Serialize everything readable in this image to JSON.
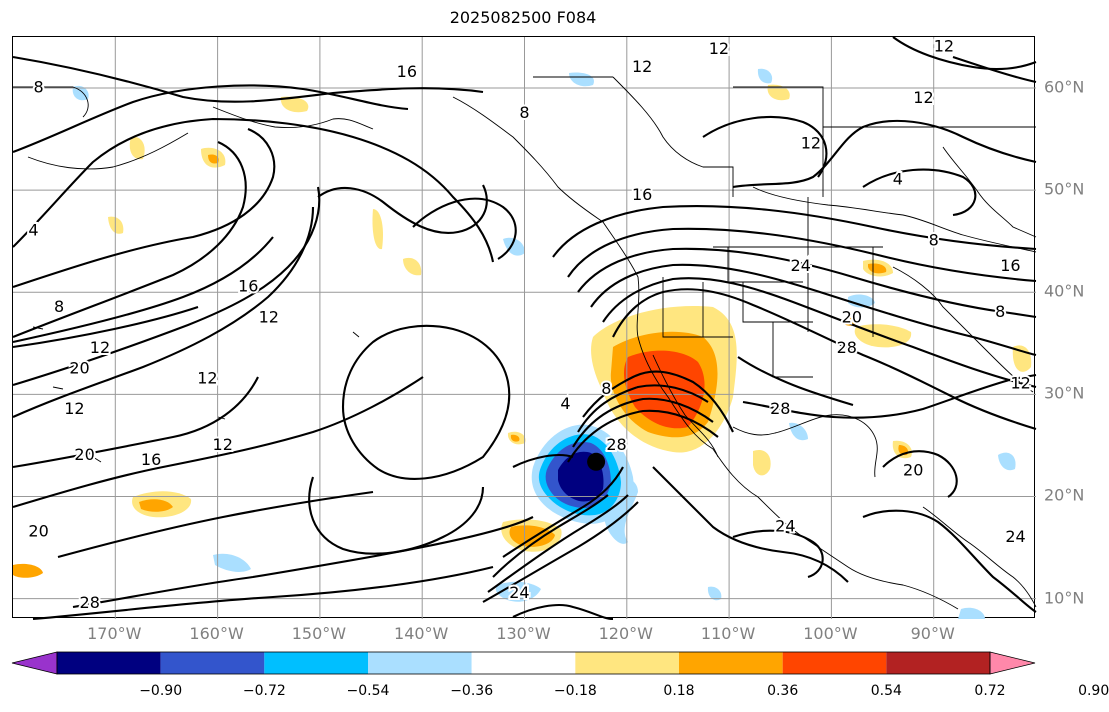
{
  "title": "2025082500 F084",
  "map": {
    "extent": {
      "lon": [
        -180,
        -80
      ],
      "lat": [
        8,
        65
      ]
    },
    "longitude_labels": [
      "170°W",
      "160°W",
      "150°W",
      "140°W",
      "130°W",
      "120°W",
      "110°W",
      "100°W",
      "90°W"
    ],
    "longitude_values": [
      -170,
      -160,
      -150,
      -140,
      -130,
      -120,
      -110,
      -100,
      -90
    ],
    "latitude_labels": [
      "60°N",
      "50°N",
      "40°N",
      "30°N",
      "20°N",
      "10°N"
    ],
    "latitude_values": [
      60,
      50,
      40,
      30,
      20,
      10
    ],
    "contour_labels": [
      {
        "text": "12",
        "lon": -111,
        "lat": 63.8
      },
      {
        "text": "12",
        "lon": -118.5,
        "lat": 62
      },
      {
        "text": "12",
        "lon": -89,
        "lat": 64
      },
      {
        "text": "12",
        "lon": -91,
        "lat": 59
      },
      {
        "text": "12",
        "lon": -102,
        "lat": 54.5
      },
      {
        "text": "16",
        "lon": -141.5,
        "lat": 61.5
      },
      {
        "text": "8",
        "lon": -130,
        "lat": 57.5
      },
      {
        "text": "8",
        "lon": -177.5,
        "lat": 60
      },
      {
        "text": "8",
        "lon": -90,
        "lat": 45
      },
      {
        "text": "8",
        "lon": -83.5,
        "lat": 38
      },
      {
        "text": "8",
        "lon": -175.5,
        "lat": 38.5
      },
      {
        "text": "4",
        "lon": -178,
        "lat": 46
      },
      {
        "text": "4",
        "lon": -93.5,
        "lat": 51
      },
      {
        "text": "16",
        "lon": -118.5,
        "lat": 49.5
      },
      {
        "text": "24",
        "lon": -103,
        "lat": 42.5
      },
      {
        "text": "16",
        "lon": -82.5,
        "lat": 42.5
      },
      {
        "text": "20",
        "lon": -98,
        "lat": 37.5
      },
      {
        "text": "28",
        "lon": -98.5,
        "lat": 34.5
      },
      {
        "text": "16",
        "lon": -157,
        "lat": 40.5
      },
      {
        "text": "12",
        "lon": -155,
        "lat": 37.5
      },
      {
        "text": "12",
        "lon": -171.5,
        "lat": 34.5
      },
      {
        "text": "12",
        "lon": -161,
        "lat": 31.5
      },
      {
        "text": "20",
        "lon": -173.5,
        "lat": 32.5
      },
      {
        "text": "12",
        "lon": -174,
        "lat": 28.5
      },
      {
        "text": "12",
        "lon": -159.5,
        "lat": 25
      },
      {
        "text": "16",
        "lon": -166.5,
        "lat": 23.5
      },
      {
        "text": "20",
        "lon": -173,
        "lat": 24
      },
      {
        "text": "20",
        "lon": -177.5,
        "lat": 16.5
      },
      {
        "text": "28",
        "lon": -172.5,
        "lat": 9.5
      },
      {
        "text": "24",
        "lon": -130.5,
        "lat": 10.5
      },
      {
        "text": "4",
        "lon": -126,
        "lat": 29
      },
      {
        "text": "8",
        "lon": -122,
        "lat": 30.5
      },
      {
        "text": "28",
        "lon": -121,
        "lat": 25
      },
      {
        "text": "28",
        "lon": -105,
        "lat": 28.5
      },
      {
        "text": "24",
        "lon": -104.5,
        "lat": 17
      },
      {
        "text": "20",
        "lon": -92,
        "lat": 22.5
      },
      {
        "text": "12",
        "lon": -81.5,
        "lat": 31
      },
      {
        "text": "24",
        "lon": -82,
        "lat": 16
      }
    ],
    "center_marker": {
      "lon": -123,
      "lat": 23.4,
      "color": "#000000"
    }
  },
  "colorbar": {
    "tick_labels": [
      "−0.90",
      "−0.72",
      "−0.54",
      "−0.36",
      "−0.18",
      "0.18",
      "0.36",
      "0.54",
      "0.72",
      "0.90"
    ],
    "colors": [
      "#9933cc",
      "#000080",
      "#3355cc",
      "#00bfff",
      "#aadfff",
      "#ffffff",
      "#ffe680",
      "#ffa500",
      "#ff4500",
      "#b22222",
      "#ff88aa"
    ]
  }
}
